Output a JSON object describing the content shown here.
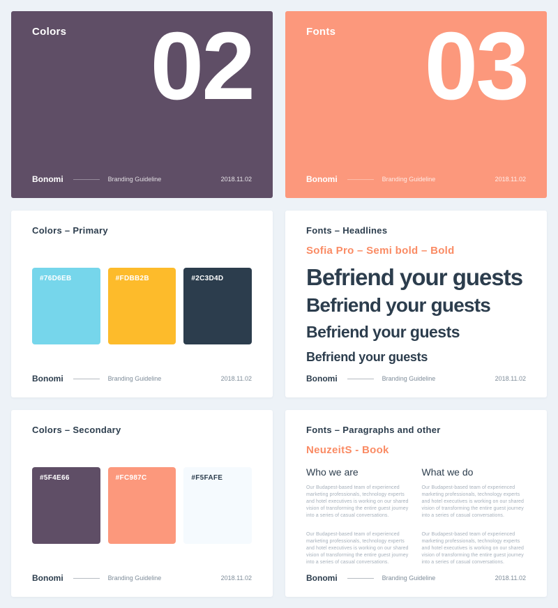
{
  "page": {
    "background": "#EDF2F7"
  },
  "footer": {
    "brand": "Bonomi",
    "label": "Branding Guideline",
    "date": "2018.11.02"
  },
  "colors": {
    "dark_navy": "#2C3D4D",
    "accent_salmon": "#FA8B64",
    "paragraph_gray": "#A6B0BB"
  },
  "cards": [
    {
      "kind": "cover",
      "title": "Colors",
      "number": "02",
      "background": "#5F4E66",
      "text_color": "#FFFFFF"
    },
    {
      "kind": "cover",
      "title": "Fonts",
      "number": "03",
      "background": "#FC987C",
      "text_color": "#FFFFFF"
    },
    {
      "kind": "swatches",
      "title": "Colors – Primary",
      "swatches": [
        {
          "hex": "#76D6EB",
          "label_color": "#FFFFFF"
        },
        {
          "hex": "#FDBB2B",
          "label_color": "#FFFFFF"
        },
        {
          "hex": "#2C3D4D",
          "label_color": "#FFFFFF"
        }
      ]
    },
    {
      "kind": "headlines",
      "title": "Fonts – Headlines",
      "font_name": "Sofia Pro – Semi bold – Bold",
      "accent_color": "#FA8B64",
      "sample_text": "Befriend your guests"
    },
    {
      "kind": "swatches",
      "title": "Colors – Secondary",
      "swatches": [
        {
          "hex": "#5F4E66",
          "label_color": "#FFFFFF"
        },
        {
          "hex": "#FC987C",
          "label_color": "#FFFFFF"
        },
        {
          "hex": "#F5FAFE",
          "label_color": "#2C3D4D"
        }
      ]
    },
    {
      "kind": "paragraphs",
      "title": "Fonts – Paragraphs and other",
      "font_name": "NeuzeitS - Book",
      "accent_color": "#FA8B64",
      "columns": [
        {
          "heading": "Who we are",
          "paragraphs": [
            "Our Budapest-based team of experienced marketing professionals, technology experts and hotel executives is working on our shared vision of transforming the entire guest journey into a series of casual conversations.",
            "Our Budapest-based team of experienced marketing professionals, technology experts and hotel executives is working on our shared vision of transforming the entire guest journey into a series of casual conversations."
          ]
        },
        {
          "heading": "What we do",
          "paragraphs": [
            "Our Budapest-based team of experienced marketing professionals, technology experts and hotel executives is working on our shared vision of transforming the entire guest journey into a series of casual conversations.",
            "Our Budapest-based team of experienced marketing professionals, technology experts and hotel executives is working on our shared vision of transforming the entire guest journey into a series of casual conversations."
          ]
        }
      ]
    }
  ]
}
